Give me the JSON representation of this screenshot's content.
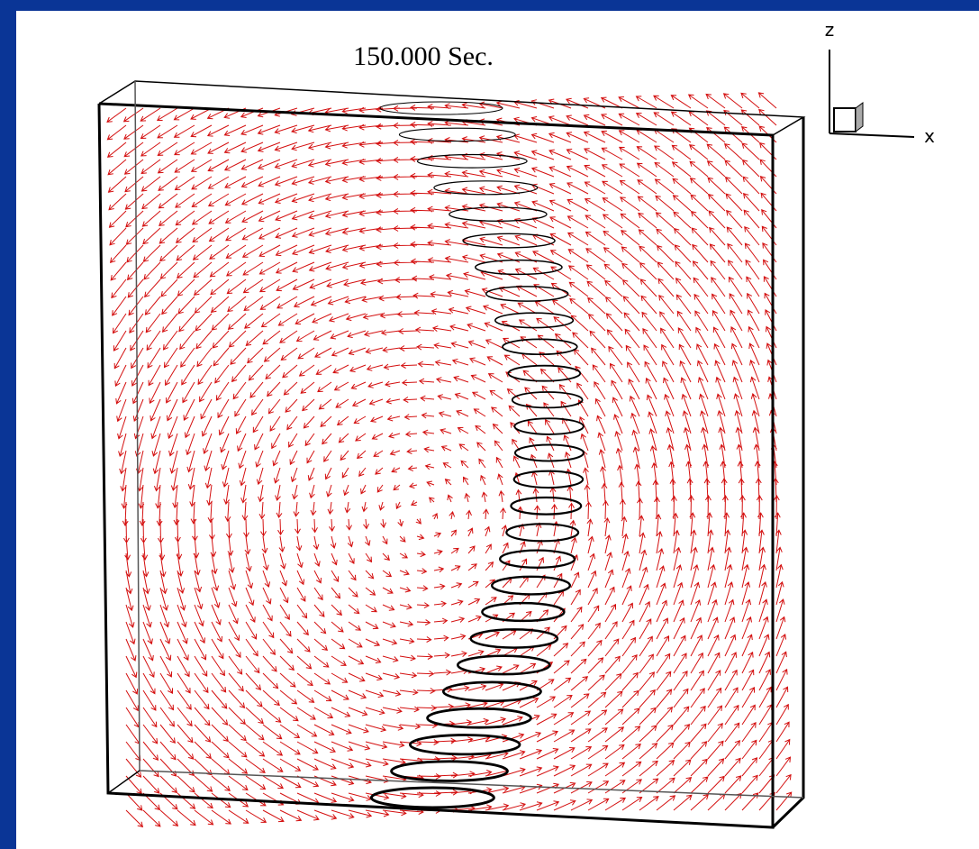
{
  "title": "150.000 Sec.",
  "axes": {
    "vertical": "z",
    "horizontal": "x"
  }
}
